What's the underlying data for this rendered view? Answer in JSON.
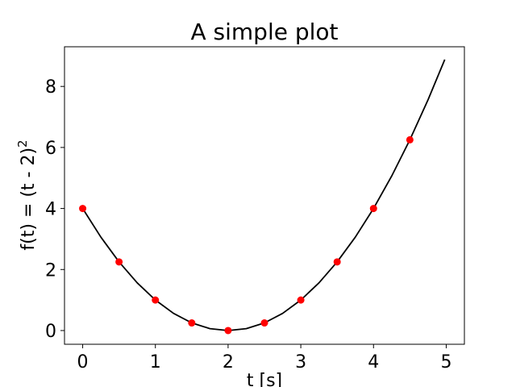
{
  "chart_data": {
    "type": "line",
    "title": "A simple plot",
    "xlabel": "t [s]",
    "ylabel_main": "f(t) = (t - 2)",
    "ylabel_sup": "2",
    "xlim": [
      -0.25,
      5.25
    ],
    "ylim": [
      -0.45,
      9.3
    ],
    "xticks": [
      0,
      1,
      2,
      3,
      4,
      5
    ],
    "yticks": [
      0,
      2,
      4,
      6,
      8
    ],
    "grid": false,
    "series": [
      {
        "kind": "line",
        "color": "#000000",
        "x": [
          0,
          0.25,
          0.5,
          0.75,
          1,
          1.25,
          1.5,
          1.75,
          2,
          2.25,
          2.5,
          2.75,
          3,
          3.25,
          3.5,
          3.75,
          4,
          4.25,
          4.5,
          4.75,
          4.98
        ],
        "y": [
          4,
          3.0625,
          2.25,
          1.5625,
          1,
          0.5625,
          0.25,
          0.0625,
          0,
          0.0625,
          0.25,
          0.5625,
          1,
          1.5625,
          2.25,
          3.0625,
          4,
          5.0625,
          6.25,
          7.5625,
          8.88
        ]
      },
      {
        "kind": "scatter",
        "color": "#ff0000",
        "x": [
          0,
          0.5,
          1,
          1.5,
          2,
          2.5,
          3,
          3.5,
          4,
          4.5
        ],
        "y": [
          4,
          2.25,
          1,
          0.25,
          0,
          0.25,
          1,
          2.25,
          4,
          6.25
        ]
      }
    ]
  }
}
